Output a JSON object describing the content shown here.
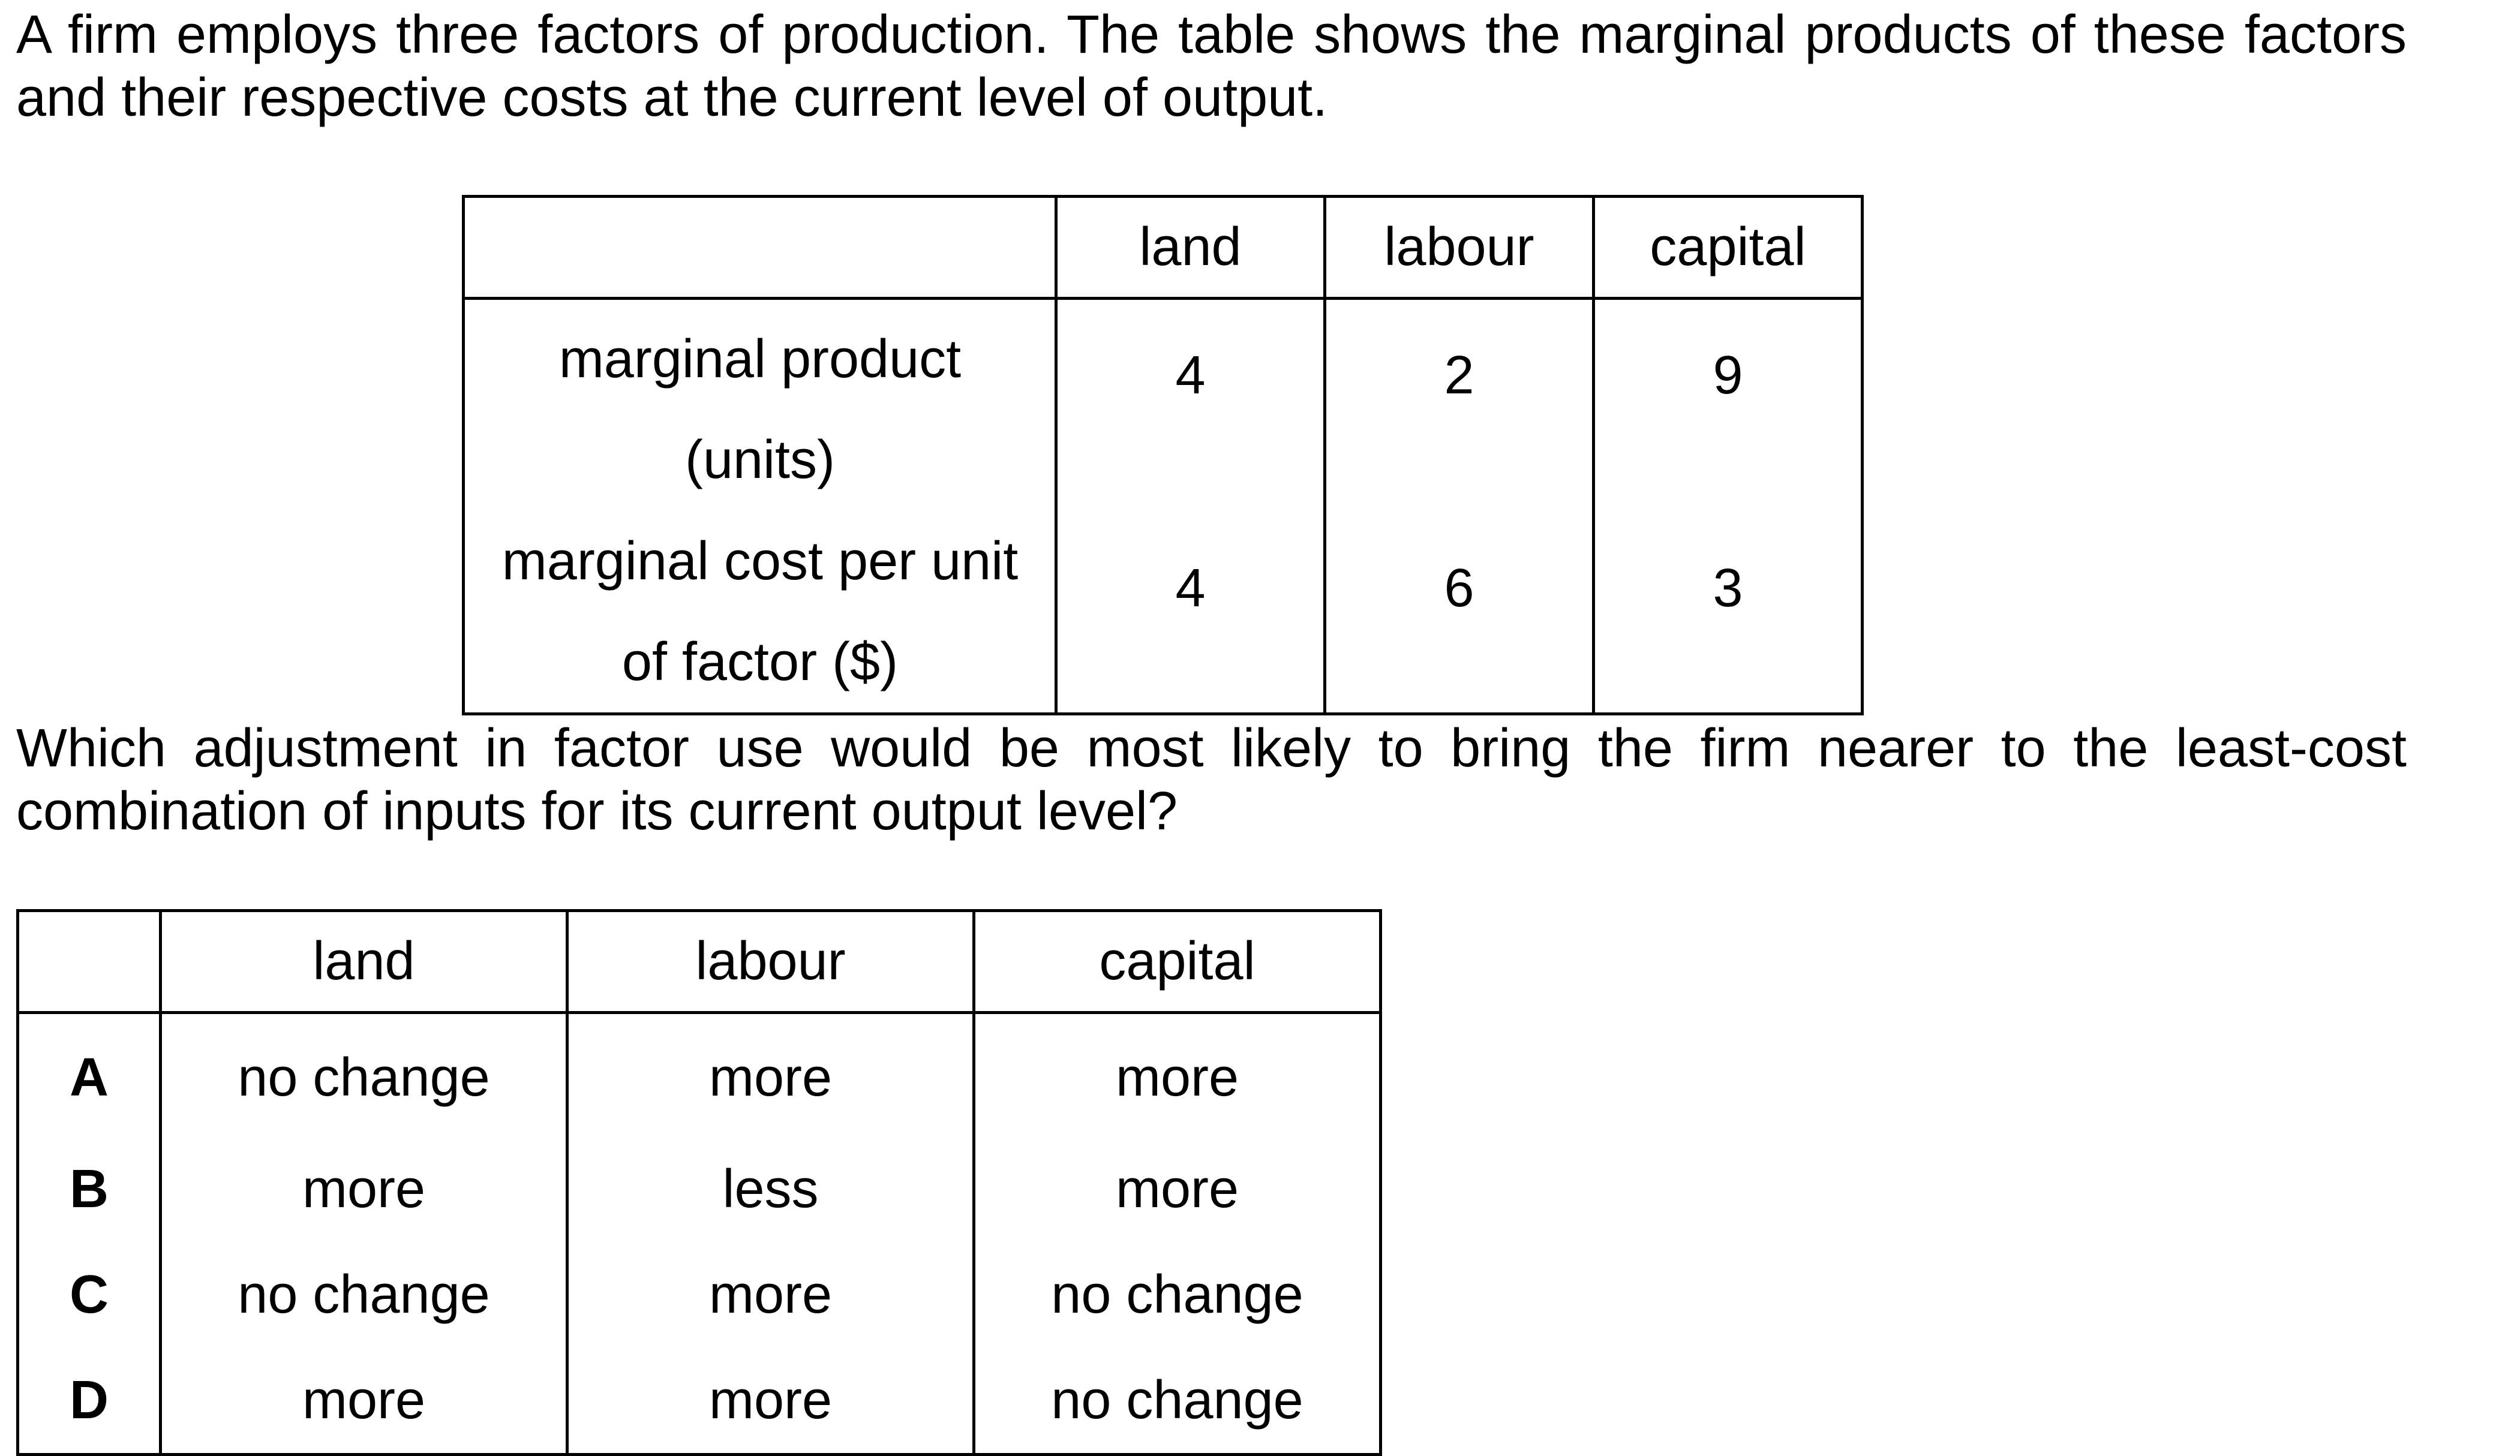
{
  "intro": "A firm employs three factors of production. The table shows the marginal products of these factors and their respective costs at the current level of output.",
  "factor_table": {
    "corner": "",
    "columns": [
      "land",
      "labour",
      "capital"
    ],
    "rows": [
      {
        "label": "marginal product (units)",
        "values": [
          "4",
          "2",
          "9"
        ]
      },
      {
        "label": "marginal cost per unit of factor ($)",
        "values": [
          "4",
          "6",
          "3"
        ]
      }
    ]
  },
  "question": "Which adjustment in factor use would be most likely to bring the firm nearer to the least-cost combination of inputs for its current output level?",
  "options_table": {
    "corner": "",
    "columns": [
      "land",
      "labour",
      "capital"
    ],
    "rows": [
      {
        "key": "A",
        "values": [
          "no change",
          "more",
          "more"
        ]
      },
      {
        "key": "B",
        "values": [
          "more",
          "less",
          "more"
        ]
      },
      {
        "key": "C",
        "values": [
          "no change",
          "more",
          "no change"
        ]
      },
      {
        "key": "D",
        "values": [
          "more",
          "more",
          "no change"
        ]
      }
    ]
  }
}
